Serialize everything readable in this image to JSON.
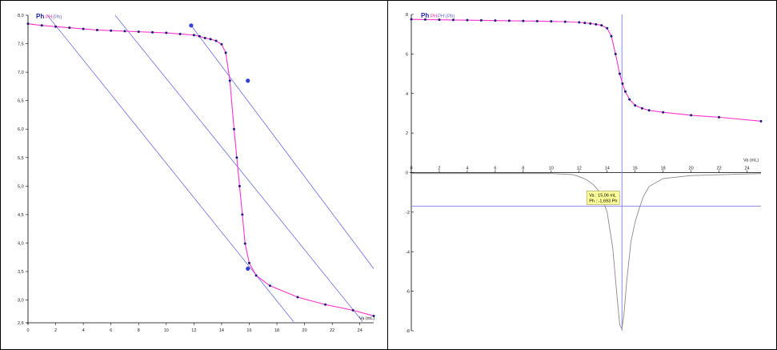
{
  "chart_data": [
    {
      "type": "line",
      "legend": {
        "symbol": "Ph",
        "entries": [
          {
            "text": "PH",
            "color": "#ff33cc"
          },
          {
            "text": "(Ph)",
            "color": "#6a6ad0"
          }
        ]
      },
      "xlabel": "Va (mL)",
      "ylabel": "",
      "xlim": [
        0,
        25
      ],
      "ylim": [
        2.6,
        8.0
      ],
      "x_ticks": [
        0,
        2,
        4,
        6,
        8,
        10,
        12,
        14,
        16,
        18,
        20,
        22,
        24
      ],
      "y_ticks": [
        2.6,
        3.0,
        3.5,
        4.0,
        4.5,
        5.0,
        5.5,
        6.0,
        6.5,
        7.0,
        7.5,
        8.0
      ],
      "y_tick_labels": [
        "2,6",
        "3,0",
        "3,5",
        "4,0",
        "4,5",
        "5,0",
        "5,5",
        "6,0",
        "6,5",
        "7,0",
        "7,5",
        "8,0"
      ],
      "series": [
        {
          "name": "PH",
          "color": "#ff33cc",
          "x": [
            0,
            1,
            2,
            3,
            4,
            5,
            6,
            7,
            8,
            9,
            10,
            11,
            12,
            12.4,
            12.8,
            13.2,
            13.6,
            14.0,
            14.3,
            14.6,
            14.9,
            15.1,
            15.3,
            15.5,
            15.7,
            16.0,
            16.5,
            17.5,
            19.5,
            21.5,
            23.5,
            25.0
          ],
          "y": [
            7.85,
            7.82,
            7.8,
            7.78,
            7.76,
            7.74,
            7.73,
            7.72,
            7.71,
            7.7,
            7.69,
            7.67,
            7.65,
            7.63,
            7.6,
            7.58,
            7.55,
            7.49,
            7.34,
            6.85,
            6.0,
            5.5,
            5.0,
            4.5,
            3.99,
            3.65,
            3.43,
            3.25,
            3.05,
            2.92,
            2.82,
            2.72
          ]
        },
        {
          "name": "",
          "color": "#7b7be8",
          "type": "line",
          "x": [
            1.4,
            19.2
          ],
          "y": [
            8.0,
            2.62
          ]
        },
        {
          "name": "",
          "color": "#7b7be8",
          "type": "line",
          "x": [
            6.3,
            24.2
          ],
          "y": [
            8.0,
            2.62
          ]
        },
        {
          "name": "",
          "color": "#7b7be8",
          "type": "line",
          "x": [
            11.8,
            25.0
          ],
          "y": [
            7.82,
            3.55
          ]
        }
      ],
      "markers": [
        {
          "x": 11.8,
          "y": 7.82
        },
        {
          "x": 15.9,
          "y": 6.85
        },
        {
          "x": 15.9,
          "y": 3.55
        }
      ],
      "grid": false
    },
    {
      "type": "line",
      "legend": {
        "symbol": "Ph",
        "entries": [
          {
            "text": "PH",
            "color": "#ff33cc"
          },
          {
            "text": "PH'",
            "color": "#6a6ad0"
          },
          {
            "text": "(Ph)",
            "color": "#6a6ad0"
          }
        ]
      },
      "xlabel": "Va (mL)",
      "ylabel": "",
      "xlim": [
        0,
        25
      ],
      "ylim": [
        -8,
        8
      ],
      "x_ticks": [
        0,
        2,
        4,
        6,
        8,
        10,
        12,
        14,
        16,
        18,
        20,
        22,
        24
      ],
      "y_ticks": [
        -8,
        -6,
        -4,
        -2,
        0,
        2,
        4,
        6,
        8
      ],
      "series": [
        {
          "name": "PH",
          "color": "#ff33cc",
          "x": [
            0,
            1,
            2,
            3,
            4,
            5,
            6,
            7,
            8,
            9,
            10,
            11,
            12,
            12.4,
            12.8,
            13.2,
            13.6,
            14.0,
            14.3,
            14.6,
            14.9,
            15.1,
            15.3,
            15.6,
            16.0,
            16.5,
            17.0,
            18.0,
            20.0,
            22.0,
            25.0
          ],
          "y": [
            7.75,
            7.74,
            7.73,
            7.72,
            7.71,
            7.7,
            7.69,
            7.68,
            7.67,
            7.66,
            7.65,
            7.63,
            7.6,
            7.57,
            7.54,
            7.5,
            7.45,
            7.3,
            6.9,
            6.0,
            5.0,
            4.5,
            4.1,
            3.7,
            3.4,
            3.25,
            3.15,
            3.05,
            2.9,
            2.8,
            2.6
          ]
        },
        {
          "name": "PH'",
          "color": "#8a8a8a",
          "x": [
            0,
            10,
            11.5,
            12.0,
            12.5,
            13.0,
            13.5,
            14.0,
            14.4,
            14.7,
            14.9,
            15.05,
            15.2,
            15.4,
            15.7,
            16.0,
            16.3,
            16.6,
            17.0,
            18.0,
            20.0,
            25.0
          ],
          "y": [
            -0.05,
            -0.05,
            -0.1,
            -0.2,
            -0.35,
            -0.6,
            -1.0,
            -2.0,
            -3.8,
            -6.2,
            -7.7,
            -7.9,
            -7.2,
            -5.5,
            -3.5,
            -2.5,
            -1.8,
            -1.2,
            -0.7,
            -0.3,
            -0.15,
            -0.05
          ]
        },
        {
          "name": "",
          "color": "#7b7be8",
          "type": "hline",
          "y": -1.693
        },
        {
          "name": "",
          "color": "#7b7be8",
          "type": "vline",
          "x": 15.06
        }
      ],
      "tooltip": {
        "line1": "Va : 15,06 mL",
        "line2": "Ph : -1,693 Ph"
      },
      "grid": false
    }
  ]
}
